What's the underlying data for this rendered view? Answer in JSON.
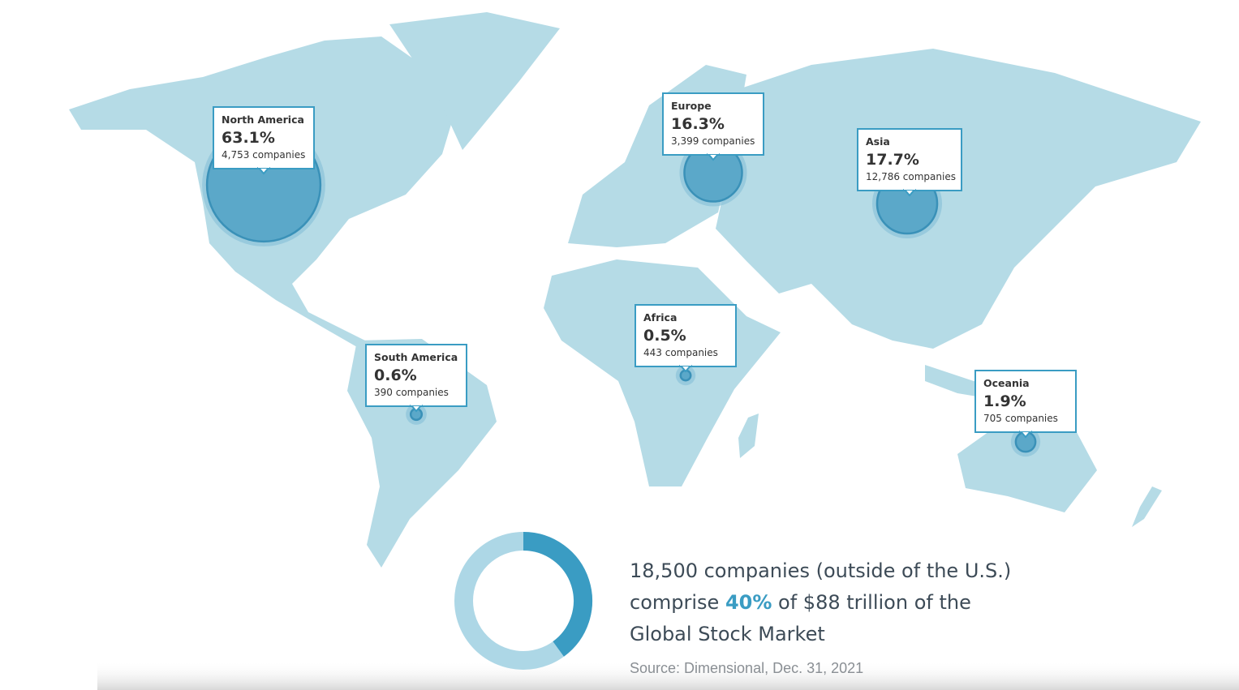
{
  "regions": [
    {
      "name": "North America",
      "share": {
        "value": 63.1,
        "label": "63.1%"
      },
      "companies": "4,753 companies"
    },
    {
      "name": "Europe",
      "share": {
        "value": 16.3,
        "label": "16.3%"
      },
      "companies": "3,399 companies"
    },
    {
      "name": "Asia",
      "share": {
        "value": 17.7,
        "label": "17.7%"
      },
      "companies": "12,786 companies"
    },
    {
      "name": "South America",
      "share": {
        "value": 0.6,
        "label": "0.6%"
      },
      "companies": "390 companies"
    },
    {
      "name": "Africa",
      "share": {
        "value": 0.5,
        "label": "0.5%"
      },
      "companies": "443 companies"
    },
    {
      "name": "Oceania",
      "share": {
        "value": 1.9,
        "label": "1.9%"
      },
      "companies": "705 companies"
    }
  ],
  "summary": {
    "line1": "18,500 companies (outside of the U.S.)",
    "line2_start": "comprise",
    "highlight": {
      "value": 40,
      "label": "40%"
    },
    "line2_end": "of $88 trillion of the",
    "line3": "Global Stock Market",
    "source": "Source: Dimensional, Dec. 31, 2021"
  }
}
